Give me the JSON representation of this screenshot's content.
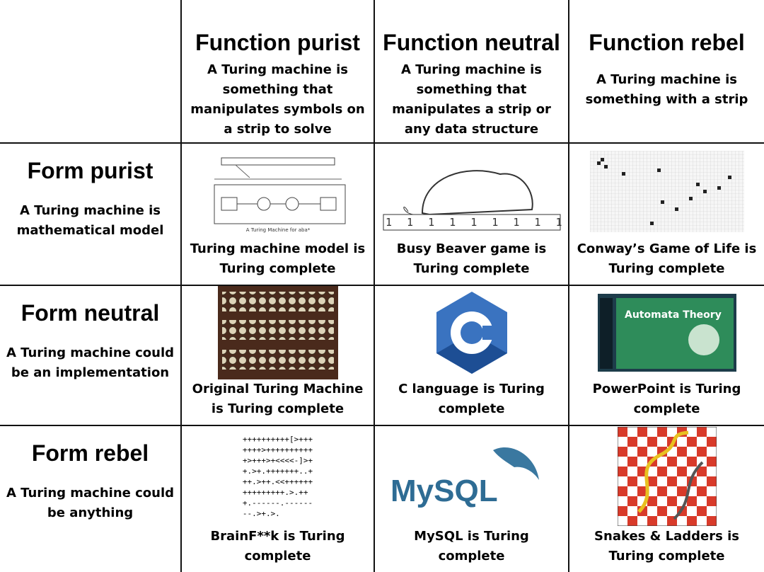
{
  "columns": [
    {
      "title": "Function purist",
      "description": "A Turing machine is something that manipulates symbols on a strip to solve problems"
    },
    {
      "title": "Function neutral",
      "description": "A Turing machine is something that manipulates  a strip or any data structure"
    },
    {
      "title": "Function rebel",
      "description": "A Turing machine is something with a strip"
    }
  ],
  "rows": [
    {
      "title": "Form purist",
      "description": "A Turing machine is mathematical model",
      "cells": [
        {
          "caption": "Turing machine model is Turing complete",
          "image_text": "A Turing Machine for aba*"
        },
        {
          "caption": "Busy Beaver game is Turing complete",
          "image_text": "1 1 1 1 1 1 1 1 1"
        },
        {
          "caption": "Conway’s Game of Life is Turing complete"
        }
      ]
    },
    {
      "title": "Form neutral",
      "description": "A Turing machine could be an implementation",
      "cells": [
        {
          "caption": "Original Turing Machine is Turing complete"
        },
        {
          "caption": "C language is Turing complete",
          "image_text": "C"
        },
        {
          "caption": "PowerPoint is Turing complete",
          "image_text": "Automata Theory"
        }
      ]
    },
    {
      "title": "Form rebel",
      "description": "A Turing machine could be anything",
      "cells": [
        {
          "caption": "BrainF**k is Turing complete",
          "image_lines": [
            "++++++++++[>+++",
            "++++>++++++++++",
            "+>+++>+<<<<-]>+",
            "+.>+.+++++++..+",
            "++.>++.<<++++++",
            "+++++++++.>.++",
            "+.------.------",
            "--.>+.>."
          ]
        },
        {
          "caption": "MySQL is Turing complete",
          "image_text": "MySQL"
        },
        {
          "caption": "Snakes & Ladders is Turing complete"
        }
      ]
    }
  ]
}
